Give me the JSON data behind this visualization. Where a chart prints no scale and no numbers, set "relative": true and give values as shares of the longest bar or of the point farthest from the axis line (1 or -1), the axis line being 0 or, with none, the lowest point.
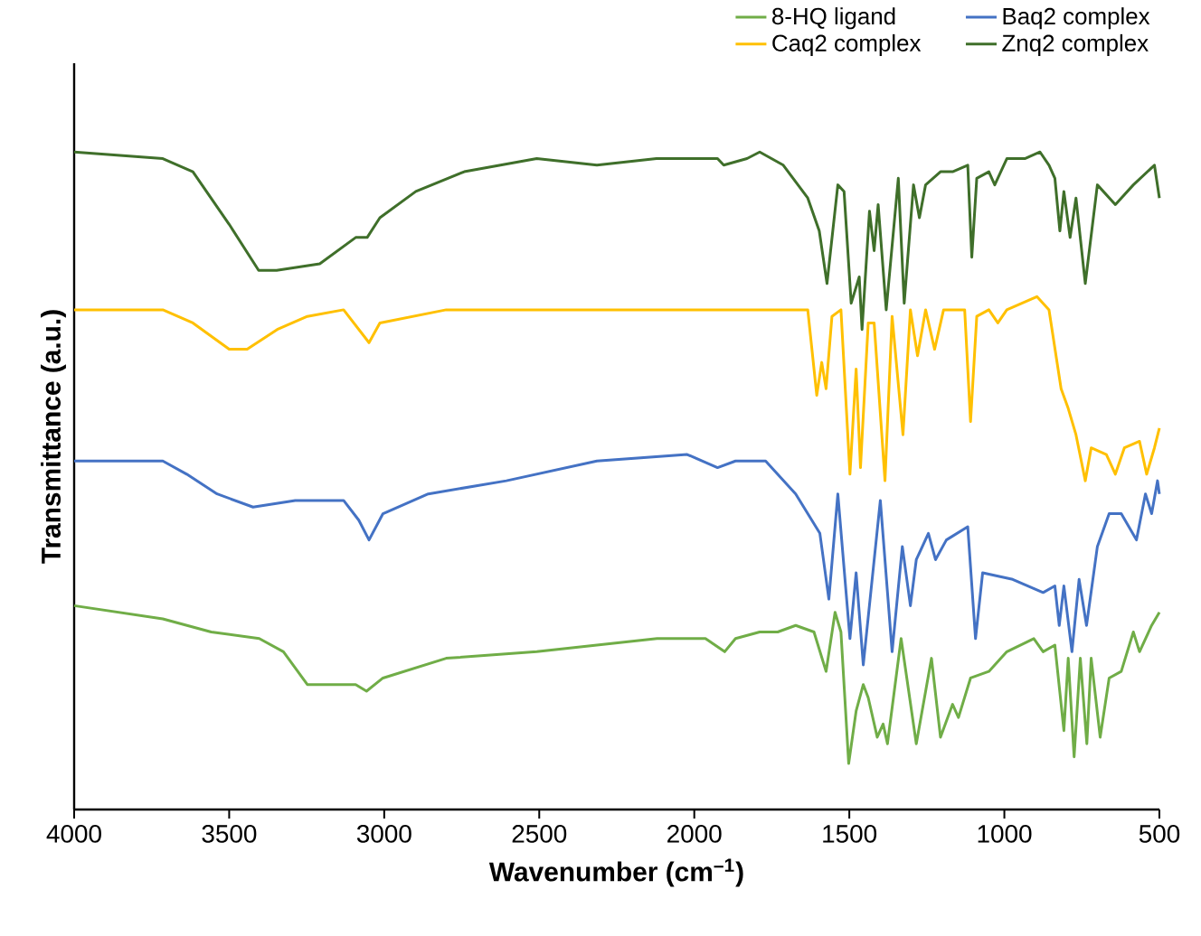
{
  "chart_data": {
    "type": "line",
    "xlabel": "Wavenumber (cm$^{–1}$)",
    "ylabel": "Transmittance (a.u.)",
    "xlim": [
      4000,
      500
    ],
    "xticks": [
      4000,
      3500,
      3000,
      2500,
      2000,
      1500,
      1000,
      500
    ],
    "relative": true,
    "legend": "top right",
    "series": [
      {
        "name": "8-HQ ligand",
        "color": "#70ad47",
        "x": [
          4000,
          3714,
          3558,
          3403,
          3325,
          3248,
          3092,
          3057,
          3004,
          2800,
          2508,
          2120,
          1964,
          1902,
          1867,
          1789,
          1731,
          1673,
          1614,
          1575,
          1546,
          1527,
          1502,
          1478,
          1455,
          1439,
          1410,
          1391,
          1377,
          1333,
          1284,
          1235,
          1206,
          1167,
          1148,
          1109,
          1050,
          992,
          905,
          875,
          837,
          808,
          794,
          775,
          755,
          734,
          720,
          691,
          662,
          623,
          584,
          564,
          525,
          500
        ],
        "values": [
          0.31,
          0.29,
          0.27,
          0.26,
          0.24,
          0.19,
          0.19,
          0.18,
          0.2,
          0.23,
          0.24,
          0.26,
          0.26,
          0.24,
          0.26,
          0.27,
          0.27,
          0.28,
          0.27,
          0.21,
          0.3,
          0.27,
          0.07,
          0.15,
          0.19,
          0.17,
          0.11,
          0.13,
          0.1,
          0.26,
          0.1,
          0.23,
          0.11,
          0.16,
          0.14,
          0.2,
          0.21,
          0.24,
          0.26,
          0.24,
          0.25,
          0.12,
          0.23,
          0.08,
          0.23,
          0.1,
          0.23,
          0.11,
          0.2,
          0.21,
          0.27,
          0.24,
          0.28,
          0.3
        ]
      },
      {
        "name": "Baq2 complex",
        "color": "#4472c4",
        "x": [
          4000,
          3714,
          3637,
          3539,
          3423,
          3287,
          3131,
          3082,
          3049,
          3004,
          2858,
          2606,
          2314,
          2023,
          1925,
          1867,
          1770,
          1673,
          1595,
          1566,
          1537,
          1498,
          1478,
          1455,
          1400,
          1362,
          1329,
          1303,
          1284,
          1245,
          1222,
          1187,
          1118,
          1093,
          1070,
          973,
          875,
          837,
          823,
          808,
          782,
          759,
          735,
          700,
          662,
          623,
          574,
          545,
          525,
          506,
          500
        ],
        "values": [
          0.53,
          0.53,
          0.51,
          0.48,
          0.46,
          0.47,
          0.47,
          0.44,
          0.41,
          0.45,
          0.48,
          0.5,
          0.53,
          0.54,
          0.52,
          0.53,
          0.53,
          0.48,
          0.42,
          0.32,
          0.48,
          0.26,
          0.36,
          0.22,
          0.47,
          0.24,
          0.4,
          0.31,
          0.38,
          0.42,
          0.38,
          0.41,
          0.43,
          0.26,
          0.36,
          0.35,
          0.33,
          0.34,
          0.28,
          0.34,
          0.24,
          0.35,
          0.28,
          0.4,
          0.45,
          0.45,
          0.41,
          0.48,
          0.45,
          0.5,
          0.48
        ]
      },
      {
        "name": "Caq2 complex",
        "color": "#ffc000",
        "x": [
          4000,
          3714,
          3617,
          3500,
          3442,
          3345,
          3248,
          3131,
          3049,
          3014,
          2800,
          2508,
          2122,
          1925,
          1789,
          1634,
          1605,
          1589,
          1575,
          1556,
          1527,
          1498,
          1478,
          1464,
          1439,
          1420,
          1385,
          1362,
          1327,
          1303,
          1280,
          1254,
          1225,
          1196,
          1128,
          1109,
          1089,
          1050,
          1021,
          992,
          895,
          856,
          817,
          794,
          769,
          739,
          720,
          671,
          642,
          613,
          564,
          541,
          516,
          500
        ],
        "values": [
          0.76,
          0.76,
          0.74,
          0.7,
          0.7,
          0.73,
          0.75,
          0.76,
          0.71,
          0.74,
          0.76,
          0.76,
          0.76,
          0.76,
          0.76,
          0.76,
          0.63,
          0.68,
          0.64,
          0.75,
          0.76,
          0.51,
          0.67,
          0.52,
          0.74,
          0.74,
          0.5,
          0.75,
          0.57,
          0.76,
          0.69,
          0.76,
          0.7,
          0.76,
          0.76,
          0.59,
          0.75,
          0.76,
          0.74,
          0.76,
          0.78,
          0.76,
          0.64,
          0.61,
          0.57,
          0.5,
          0.55,
          0.54,
          0.51,
          0.55,
          0.56,
          0.51,
          0.55,
          0.58
        ]
      },
      {
        "name": "Znq2 complex",
        "color": "#3f6f2a",
        "x": [
          4000,
          3714,
          3617,
          3500,
          3405,
          3347,
          3208,
          3092,
          3055,
          3014,
          2898,
          2742,
          2508,
          2314,
          2122,
          1925,
          1905,
          1830,
          1789,
          1713,
          1634,
          1597,
          1572,
          1537,
          1517,
          1494,
          1468,
          1459,
          1435,
          1420,
          1407,
          1381,
          1342,
          1323,
          1293,
          1274,
          1254,
          1206,
          1167,
          1118,
          1105,
          1089,
          1050,
          1031,
          992,
          934,
          885,
          856,
          837,
          821,
          808,
          788,
          769,
          739,
          700,
          642,
          584,
          516,
          500
        ],
        "values": [
          1.0,
          0.99,
          0.97,
          0.89,
          0.82,
          0.82,
          0.83,
          0.87,
          0.87,
          0.9,
          0.94,
          0.97,
          0.99,
          0.98,
          0.99,
          0.99,
          0.98,
          0.99,
          1.0,
          0.98,
          0.93,
          0.88,
          0.8,
          0.95,
          0.94,
          0.77,
          0.81,
          0.73,
          0.91,
          0.85,
          0.92,
          0.76,
          0.96,
          0.77,
          0.95,
          0.9,
          0.95,
          0.97,
          0.97,
          0.98,
          0.84,
          0.96,
          0.97,
          0.95,
          0.99,
          0.99,
          1.0,
          0.98,
          0.96,
          0.88,
          0.94,
          0.87,
          0.93,
          0.8,
          0.95,
          0.92,
          0.95,
          0.98,
          0.93
        ]
      }
    ]
  }
}
